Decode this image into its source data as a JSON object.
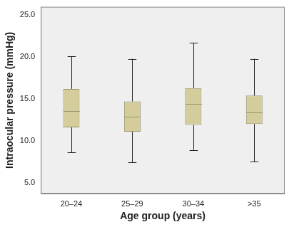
{
  "chart_data": {
    "type": "box",
    "x_label": "Age group (years)",
    "y_label": "Intraocular pressure (mmHg)",
    "categories": [
      "20–24",
      "25–29",
      "30–34",
      ">35"
    ],
    "min": [
      8.6,
      7.4,
      8.9,
      7.5
    ],
    "q1": [
      11.6,
      11.1,
      11.9,
      12.0
    ],
    "median": [
      13.6,
      12.9,
      14.4,
      13.4
    ],
    "q3": [
      16.2,
      14.7,
      16.3,
      15.4
    ],
    "max": [
      20.1,
      19.8,
      21.7,
      19.8
    ],
    "color": "#d4cd9b",
    "ylim": [
      3.7,
      26
    ],
    "yticks": [
      {
        "value": 5,
        "label": "5.0"
      },
      {
        "value": 10,
        "label": "10.0"
      },
      {
        "value": 15,
        "label": "15.0"
      },
      {
        "value": 20,
        "label": "20.0"
      },
      {
        "value": 25,
        "label": "25.0"
      }
    ],
    "grid": false
  }
}
